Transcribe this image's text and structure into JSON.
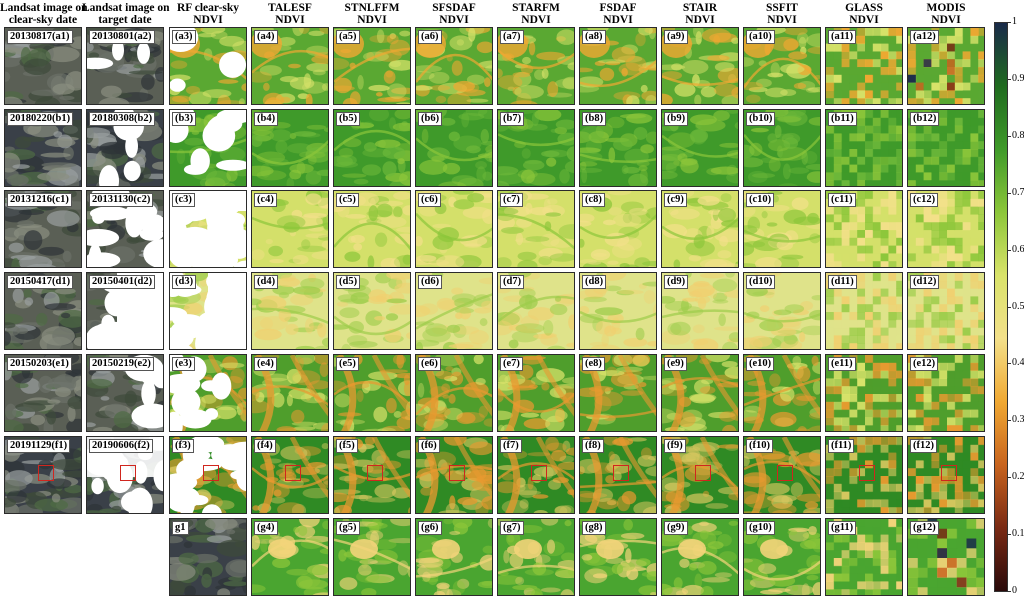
{
  "column_headers": [
    {
      "line1": "Landsat image on",
      "line2": "clear-sky date"
    },
    {
      "line1": "Landsat image on",
      "line2": "target date"
    },
    {
      "line1": "RF clear-sky",
      "line2": "NDVI"
    },
    {
      "line1": "TALESF",
      "line2": "NDVI"
    },
    {
      "line1": "STNLFFM",
      "line2": "NDVI"
    },
    {
      "line1": "SFSDAF",
      "line2": "NDVI"
    },
    {
      "line1": "STARFM",
      "line2": "NDVI"
    },
    {
      "line1": "FSDAF",
      "line2": "NDVI"
    },
    {
      "line1": "STAIR",
      "line2": "NDVI"
    },
    {
      "line1": "SSFIT",
      "line2": "NDVI"
    },
    {
      "line1": "GLASS",
      "line2": "NDVI"
    },
    {
      "line1": "MODIS",
      "line2": "NDVI"
    }
  ],
  "rows": [
    {
      "labels": [
        "20130817(a1)",
        "20130801(a2)",
        "(a3)",
        "(a4)",
        "(a5)",
        "(a6)",
        "(a7)",
        "(a8)",
        "(a9)",
        "(a10)",
        "(a11)",
        "(a12)"
      ]
    },
    {
      "labels": [
        "20180220(b1)",
        "20180308(b2)",
        "(b3)",
        "(b4)",
        "(b5)",
        "(b6)",
        "(b7)",
        "(b8)",
        "(b9)",
        "(b10)",
        "(b11)",
        "(b12)"
      ]
    },
    {
      "labels": [
        "20131216(c1)",
        "20131130(c2)",
        "(c3)",
        "(c4)",
        "(c5)",
        "(c6)",
        "(c7)",
        "(c8)",
        "(c9)",
        "(c10)",
        "(c11)",
        "(c12)"
      ]
    },
    {
      "labels": [
        "20150417(d1)",
        "20150401(d2)",
        "(d3)",
        "(d4)",
        "(d5)",
        "(d6)",
        "(d7)",
        "(d8)",
        "(d9)",
        "(d10)",
        "(d11)",
        "(d12)"
      ]
    },
    {
      "labels": [
        "20150203(e1)",
        "20150219(e2)",
        "(e3)",
        "(e4)",
        "(e5)",
        "(e6)",
        "(e7)",
        "(e8)",
        "(e9)",
        "(e10)",
        "(e11)",
        "(e12)"
      ]
    },
    {
      "labels": [
        "20191129(f1)",
        "20190606(f2)",
        "(f3)",
        "(f4)",
        "(f5)",
        "(f6)",
        "(f7)",
        "(f8)",
        "(f9)",
        "(f10)",
        "(f11)",
        "(f12)"
      ]
    },
    {
      "labels": [
        "",
        "",
        "g1",
        "(g4)",
        "(g5)",
        "(g6)",
        "(g7)",
        "(g8)",
        "(g9)",
        "(g10)",
        "(g11)",
        "(g12)"
      ]
    }
  ],
  "colorbar": {
    "ticks": [
      "1",
      "0.9",
      "0.8",
      "0.7",
      "0.6",
      "0.5",
      "0.4",
      "0.3",
      "0.2",
      "0.1",
      "0"
    ],
    "colors": [
      "#1a2a4a",
      "#1f6b1f",
      "#3f9a2a",
      "#8cc63a",
      "#d9e36a",
      "#f3e08a",
      "#f0a832",
      "#c8641e",
      "#7a2a14",
      "#2a0a0a"
    ]
  },
  "row_colors": {
    "a": "#5aa832",
    "b": "#3f9a2a",
    "c": "#d4e06a",
    "d": "#dfe38a",
    "e": "#4f9e2c",
    "f": "#2f8a24",
    "g": "#4aa530"
  }
}
